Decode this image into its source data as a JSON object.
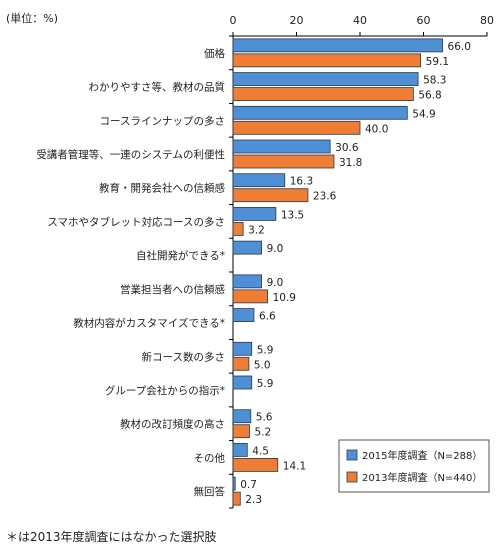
{
  "unit_label": "(単位：%)",
  "footnote": "＊は2013年度調査にはなかった選択肢",
  "colors": {
    "series_2015": "#4f8fd6",
    "series_2013": "#ef7d33",
    "bar_border": "#2a3a50",
    "axis": "#000000",
    "grid": "#c8c8c8"
  },
  "chart_data": {
    "type": "bar",
    "orientation": "horizontal",
    "xlim": [
      0,
      80
    ],
    "x_ticks": [
      0,
      20,
      40,
      60,
      80
    ],
    "tick_labels": [
      "0",
      "20",
      "40",
      "60",
      "80"
    ],
    "legend_position": "bottom-right",
    "categories": [
      "価格",
      "わかりやすさ等、教材の品質",
      "コースラインナップの多さ",
      "受講者管理等、一連のシステムの利便性",
      "教育・開発会社への信頼感",
      "スマホやタブレット対応コースの多さ",
      "自社開発ができる*",
      "営業担当者への信頼感",
      "教材内容がカスタマイズできる*",
      "新コース数の多さ",
      "グループ会社からの指示*",
      "教材の改訂頻度の高さ",
      "その他",
      "無回答"
    ],
    "series": [
      {
        "name": "2015年度調査（N=288）",
        "values": [
          66.0,
          58.3,
          54.9,
          30.6,
          16.3,
          13.5,
          9.0,
          9.0,
          6.6,
          5.9,
          5.9,
          5.6,
          4.5,
          0.7
        ],
        "labels": [
          "66.0",
          "58.3",
          "54.9",
          "30.6",
          "16.3",
          "13.5",
          "9.0",
          "9.0",
          "6.6",
          "5.9",
          "5.9",
          "5.6",
          "4.5",
          "0.7"
        ]
      },
      {
        "name": "2013年度調査（N=440）",
        "values": [
          59.1,
          56.8,
          40.0,
          31.8,
          23.6,
          3.2,
          null,
          10.9,
          null,
          5.0,
          null,
          5.2,
          14.1,
          2.3
        ],
        "labels": [
          "59.1",
          "56.8",
          "40.0",
          "31.8",
          "23.6",
          "3.2",
          "",
          "10.9",
          "",
          "5.0",
          "",
          "5.2",
          "14.1",
          "2.3"
        ]
      }
    ]
  }
}
